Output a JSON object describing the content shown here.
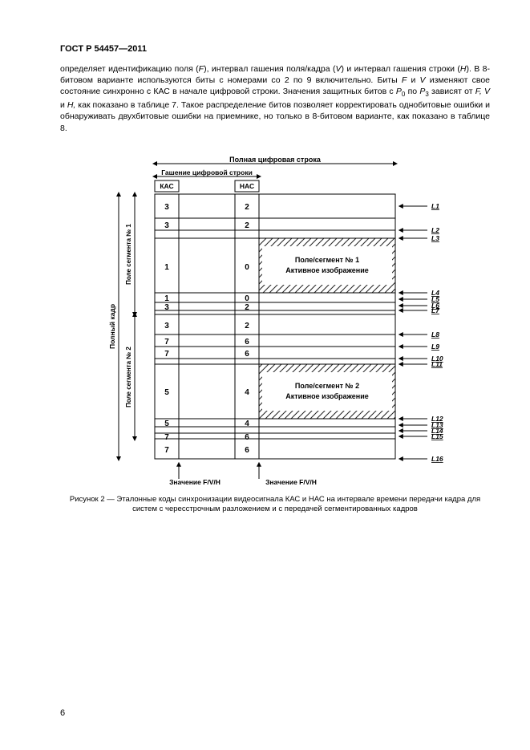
{
  "header": "ГОСТ Р 54457—2011",
  "paragraph": {
    "t1": "определяет идентификацию поля (",
    "i1": "F",
    "t2": "), интервал гашения поля/кадра (",
    "i2": "V",
    "t3": ") и интервал гашения строки (",
    "i3": "H",
    "t4": "). В 8-битовом варианте используются биты с номерами со 2 по 9 включительно. Биты ",
    "i4": "F",
    "t5": " и ",
    "i5": "V",
    "t6": " изменяют свое состояние синхронно с КАС в начале цифровой строки. Значения защитных битов с ",
    "i6": "P",
    "s6": "0",
    "t7": " по ",
    "i7": "P",
    "s7": "3",
    "t8": " зависят от ",
    "i8": "F, V",
    "t9": " и ",
    "i9": "H,",
    "t10": " как показано в таблице 7. Такое распределение битов позволяет корректировать однобитовые ошибки и обнаруживать двухбитовые ошибки на приемнике, но только в 8-битовом варианте, как показано в таблице 8."
  },
  "figure": {
    "title_top": "Полная цифровая строка",
    "title_blank": "Гашение цифровой строки",
    "kac": "КАС",
    "nac": "НАС",
    "seg1_title": "Поле/сегмент № 1",
    "seg1_sub": "Активное изображение",
    "seg2_title": "Поле/сегмент № 2",
    "seg2_sub": "Активное изображение",
    "fvh1": "Значение F/V/H",
    "fvh2": "Значение F/V/H",
    "full_frame": "Полный кадр",
    "seg_label1": "Поле сегмента № 1",
    "seg_label2": "Поле сегмента № 2",
    "L": [
      "L1",
      "L2",
      "L3",
      "L4",
      "L5",
      "L6",
      "L7",
      "L8",
      "L9",
      "L10",
      "L11",
      "L12",
      "L13",
      "L14",
      "L15",
      "L16"
    ],
    "left_col": [
      "3",
      "3",
      "1",
      "1",
      "3",
      "3",
      "7",
      "7",
      "5",
      "5",
      "7",
      "7"
    ],
    "right_col": [
      "2",
      "2",
      "0",
      "0",
      "2",
      "2",
      "6",
      "6",
      "4",
      "4",
      "6",
      "6"
    ]
  },
  "caption": "Рисунок 2 — Эталонные коды синхронизации видеосигнала КАС и НАС на интервале времени передачи кадра для систем с чересстрочным разложением и с передачей сегментированных кадров",
  "page_num": "6",
  "style": {
    "stroke": "#000000",
    "hatch_stroke": "#222222",
    "font_main": 10,
    "font_small": 9
  }
}
